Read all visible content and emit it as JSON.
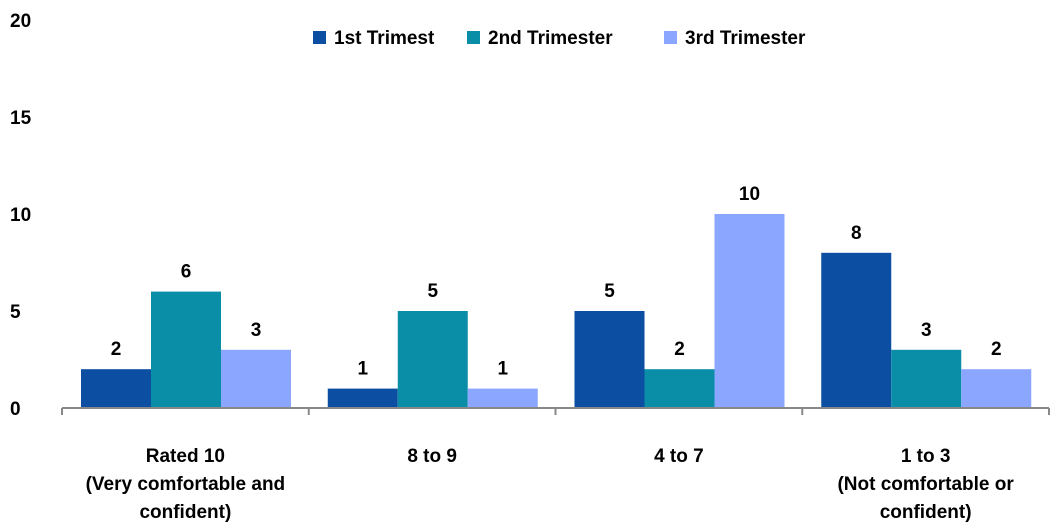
{
  "chart_data": {
    "type": "bar",
    "categories": [
      [
        "Rated 10",
        "(Very comfortable and",
        "confident)"
      ],
      [
        "8 to 9"
      ],
      [
        "4 to 7"
      ],
      [
        "1 to 3",
        "(Not comfortable or",
        "confident)"
      ]
    ],
    "series": [
      {
        "name": "1st Trimest",
        "color": "#0b4ea2",
        "values": [
          2,
          1,
          5,
          8
        ]
      },
      {
        "name": "2nd Trimester",
        "color": "#0a8ea8",
        "values": [
          6,
          5,
          2,
          3
        ]
      },
      {
        "name": "3rd Trimester",
        "color": "#8aa6ff",
        "values": [
          3,
          1,
          10,
          2
        ]
      }
    ],
    "yticks": [
      "0",
      "5",
      "10",
      "15",
      "20"
    ],
    "ylim": [
      0,
      20
    ],
    "legend_position": "top",
    "grid": false,
    "data_labels": true
  }
}
